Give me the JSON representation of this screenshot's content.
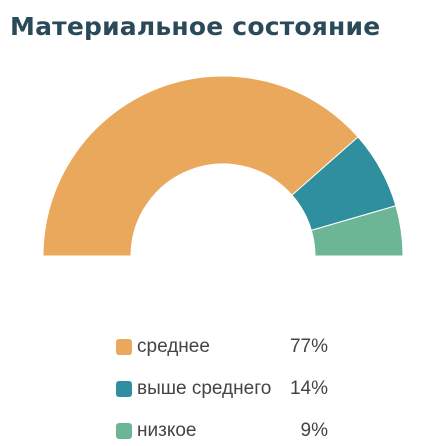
{
  "title": "Материальное состояние",
  "chart_data": {
    "type": "pie",
    "variant": "semicircle-donut",
    "title": "Материальное состояние",
    "categories": [
      "среднее",
      "выше среднего",
      "низкое"
    ],
    "values": [
      77,
      14,
      9
    ],
    "value_labels": [
      "77%",
      "14%",
      "9%"
    ],
    "colors": [
      "#e9a85c",
      "#2f8f9e",
      "#6cb595"
    ],
    "legend_position": "bottom"
  },
  "legend": [
    {
      "label": "среднее",
      "value": "77%",
      "color": "#e9a85c"
    },
    {
      "label": "выше среднего",
      "value": "14%",
      "color": "#2f8f9e"
    },
    {
      "label": "низкое",
      "value": "9%",
      "color": "#6cb595"
    }
  ]
}
